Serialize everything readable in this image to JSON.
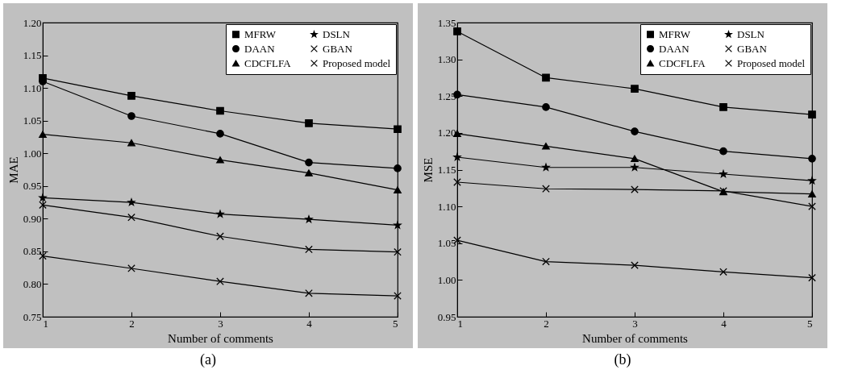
{
  "chart_data": [
    {
      "type": "line",
      "xlabel": "Number of comments",
      "ylabel": "MAE",
      "annotations": [
        "(a)"
      ],
      "x": [
        1,
        2,
        3,
        4,
        5
      ],
      "xlim": [
        1,
        5
      ],
      "xticks": [
        1,
        2,
        3,
        4,
        5
      ],
      "ylim": [
        0.75,
        1.2
      ],
      "yticks": [
        {
          "value": 0.75,
          "label": "0.75"
        },
        {
          "value": 0.8,
          "label": "0.80"
        },
        {
          "value": 0.85,
          "label": "0.85"
        },
        {
          "value": 0.9,
          "label": "0.90"
        },
        {
          "value": 0.95,
          "label": "0.95"
        },
        {
          "value": 1.0,
          "label": "1.00"
        },
        {
          "value": 1.05,
          "label": "1.05"
        },
        {
          "value": 1.1,
          "label": "1.10"
        },
        {
          "value": 1.15,
          "label": "1.15"
        },
        {
          "value": 1.2,
          "label": "1.20"
        }
      ],
      "legend": "top right",
      "series": [
        {
          "name": "MFRW",
          "color": "#000000",
          "marker": "square",
          "values": [
            1.115,
            1.088,
            1.065,
            1.046,
            1.037
          ]
        },
        {
          "name": "DAAN",
          "color": "#000000",
          "marker": "circle",
          "values": [
            1.11,
            1.057,
            1.03,
            0.986,
            0.977
          ]
        },
        {
          "name": "CDCFLFA",
          "color": "#000000",
          "marker": "triangle",
          "values": [
            1.029,
            1.016,
            0.99,
            0.97,
            0.944
          ]
        },
        {
          "name": "DSLN",
          "color": "#000000",
          "marker": "star",
          "values": [
            0.932,
            0.925,
            0.907,
            0.899,
            0.89
          ]
        },
        {
          "name": "GBAN",
          "color": "#000000",
          "marker": "cross",
          "values": [
            0.921,
            0.902,
            0.873,
            0.853,
            0.849
          ]
        },
        {
          "name": "Proposed model",
          "color": "#000000",
          "marker": "cross",
          "values": [
            0.843,
            0.824,
            0.804,
            0.786,
            0.782
          ]
        }
      ]
    },
    {
      "type": "line",
      "xlabel": "Number of comments",
      "ylabel": "MSE",
      "annotations": [
        "(b)"
      ],
      "x": [
        1,
        2,
        3,
        4,
        5
      ],
      "xlim": [
        1,
        5
      ],
      "xticks": [
        1,
        2,
        3,
        4,
        5
      ],
      "ylim": [
        0.95,
        1.35
      ],
      "yticks": [
        {
          "value": 0.95,
          "label": "0.95"
        },
        {
          "value": 1.0,
          "label": "1.00"
        },
        {
          "value": 1.05,
          "label": "1.05"
        },
        {
          "value": 1.1,
          "label": "1.10"
        },
        {
          "value": 1.15,
          "label": "1.15"
        },
        {
          "value": 1.2,
          "label": "1.20"
        },
        {
          "value": 1.25,
          "label": "1.25"
        },
        {
          "value": 1.3,
          "label": "1.30"
        },
        {
          "value": 1.35,
          "label": "1.35"
        }
      ],
      "legend": "top right",
      "series": [
        {
          "name": "MFRW",
          "color": "#000000",
          "marker": "square",
          "values": [
            1.338,
            1.275,
            1.26,
            1.235,
            1.225
          ]
        },
        {
          "name": "DAAN",
          "color": "#000000",
          "marker": "circle",
          "values": [
            1.252,
            1.235,
            1.202,
            1.175,
            1.165
          ]
        },
        {
          "name": "CDCFLFA",
          "color": "#000000",
          "marker": "triangle",
          "values": [
            1.199,
            1.182,
            1.165,
            1.12,
            1.117
          ]
        },
        {
          "name": "DSLN",
          "color": "#000000",
          "marker": "star",
          "values": [
            1.167,
            1.153,
            1.153,
            1.144,
            1.135
          ]
        },
        {
          "name": "GBAN",
          "color": "#000000",
          "marker": "cross",
          "values": [
            1.133,
            1.124,
            1.123,
            1.121,
            1.1
          ]
        },
        {
          "name": "Proposed model",
          "color": "#000000",
          "marker": "cross",
          "values": [
            1.054,
            1.025,
            1.02,
            1.011,
            1.003
          ]
        }
      ]
    }
  ]
}
